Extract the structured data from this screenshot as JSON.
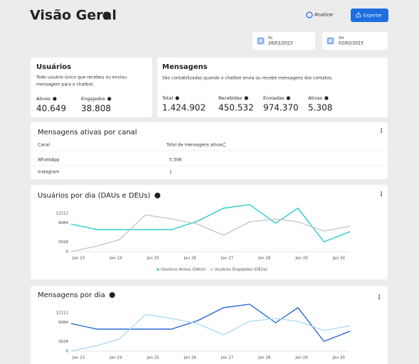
{
  "header": {
    "title": "Visão Geral",
    "refresh": "Atualizar",
    "export": "Exportar"
  },
  "dates": [
    {
      "label": "De",
      "value": "26/01/2023"
    },
    {
      "label": "Até",
      "value": "02/02/2023"
    }
  ],
  "users": {
    "title": "Usuários",
    "description": [
      "Todo usuário único que recebeu ou enviou",
      "mensagem para o chatbot."
    ],
    "metrics": [
      {
        "label": "Ativos",
        "value": "40.649"
      },
      {
        "label": "Engajados",
        "value": "38.808"
      }
    ]
  },
  "messages": {
    "title": "Mensagens",
    "description": "São contabilizadas quando o chatbot envia ou recebe mensagens dos contatos.",
    "metrics": [
      {
        "label": "Total",
        "value": "1.424.902"
      },
      {
        "label": "Recebidas",
        "value": "450.532"
      },
      {
        "label": "Enviadas",
        "value": "974.370"
      },
      {
        "label": "Ativas",
        "value": "5.308"
      }
    ]
  },
  "channels": {
    "title": "Mensagens ativas por canal",
    "columns": [
      "Canal",
      "Total de mensagens ativas"
    ],
    "rows": [
      [
        "WhatsApp",
        "5.308"
      ],
      [
        "Instagram",
        "1"
      ]
    ]
  },
  "chart_data": [
    {
      "type": "line",
      "title": "Usuários por dia (DAUs e DEUs)",
      "x": [
        22.8,
        23.5,
        24.1,
        24.8,
        25.5,
        26.2,
        26.9,
        27.6,
        28.3,
        28.9,
        29.6,
        30.3
      ],
      "xlim": [
        22.8,
        30.3
      ],
      "xticks": [
        {
          "value": 23,
          "label": "Jan 23"
        },
        {
          "value": 24,
          "label": "Jan 24"
        },
        {
          "value": 25,
          "label": "Jan 25"
        },
        {
          "value": 26,
          "label": "Jan 26"
        },
        {
          "value": 27,
          "label": "Jan 27"
        },
        {
          "value": 28,
          "label": "Jan 28"
        },
        {
          "value": 29,
          "label": "Jan 29"
        },
        {
          "value": 30,
          "label": "Jan 30"
        }
      ],
      "ylim": [
        0,
        15000
      ],
      "yticks": [
        0,
        3028,
        9084,
        12112
      ],
      "legend": "bottom",
      "series": [
        {
          "name": "Usuários Ativos (DAUs)",
          "color": "#1ec8cc",
          "values": [
            8700,
            6950,
            6950,
            6950,
            6950,
            9600,
            13700,
            14800,
            8960,
            13700,
            3100,
            6300
          ]
        },
        {
          "name": "Usuários Engajados (DEUs)",
          "color": "#c4c4c4",
          "values": [
            0,
            1800,
            3800,
            11600,
            10300,
            8700,
            5150,
            9400,
            10300,
            9400,
            6500,
            8000
          ]
        }
      ]
    },
    {
      "type": "line",
      "title": "Mensagens por dia",
      "x": [
        22.8,
        23.5,
        24.1,
        24.8,
        25.5,
        26.2,
        26.9,
        27.6,
        28.3,
        28.9,
        29.6,
        30.3
      ],
      "xlim": [
        22.8,
        30.3
      ],
      "xticks": [
        {
          "value": 23,
          "label": "Jan 23"
        },
        {
          "value": 24,
          "label": "Jan 24"
        },
        {
          "value": 25,
          "label": "Jan 25"
        },
        {
          "value": 26,
          "label": "Jan 26"
        },
        {
          "value": 27,
          "label": "Jan 27"
        },
        {
          "value": 28,
          "label": "Jan 28"
        },
        {
          "value": 29,
          "label": "Jan 29"
        },
        {
          "value": 30,
          "label": "Jan 30"
        }
      ],
      "ylim": [
        0,
        15000
      ],
      "yticks": [
        0,
        3028,
        9084,
        12112
      ],
      "series": [
        {
          "color": "#1d5fd6",
          "values": [
            8700,
            6950,
            6950,
            6950,
            6950,
            9600,
            13700,
            14800,
            8960,
            13700,
            3100,
            6300
          ]
        },
        {
          "color": "#a9daf3",
          "values": [
            0,
            1800,
            3800,
            11600,
            10300,
            8700,
            5150,
            9400,
            10300,
            9400,
            6500,
            8000
          ]
        }
      ]
    }
  ]
}
